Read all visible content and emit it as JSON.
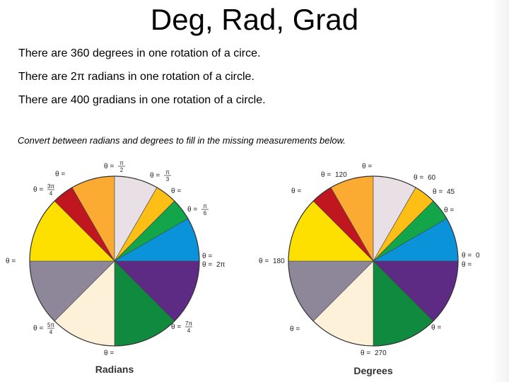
{
  "slide": {
    "title": "Deg, Rad, Grad",
    "lines": [
      "There are 360 degrees in one rotation of a circe.",
      "There are 2π radians in one rotation of a circle.",
      "There are 400 gradians in one rotation of a circle."
    ],
    "instruction": "Convert between radians and degrees to fill in the missing measurements below."
  },
  "colors": {
    "pale_gray": "#e8e0e4",
    "yellow_orange": "#fdbf16",
    "green": "#12a54a",
    "blue": "#0a93d8",
    "purple": "#5d2a84",
    "dark_green": "#0f8a3e",
    "cream": "#fdf1da",
    "gray": "#8e8799",
    "yellow": "#fde000",
    "red": "#c0161f",
    "orange": "#fbab31"
  },
  "wheels": [
    {
      "caption": "Radians",
      "labels": [
        {
          "prefix": "θ =",
          "num": "π",
          "den": "2"
        },
        {
          "prefix": "θ =",
          "num": "π",
          "den": "3"
        },
        {
          "prefix": "θ =",
          "text": ""
        },
        {
          "prefix": "θ =",
          "num": "π",
          "den": "6"
        },
        {
          "prefix": "θ =",
          "text": ""
        },
        {
          "prefix": "θ =",
          "text": "2π"
        },
        {
          "prefix": "θ =",
          "num": "7π",
          "den": "4"
        },
        {
          "prefix": "θ =",
          "text": ""
        },
        {
          "prefix": "θ =",
          "num": "5π",
          "den": "4"
        },
        {
          "prefix": "θ =",
          "text": ""
        },
        {
          "prefix": "θ =",
          "num": "3π",
          "den": "4"
        },
        {
          "prefix": "θ =",
          "text": ""
        }
      ]
    },
    {
      "caption": "Degrees",
      "labels": [
        {
          "prefix": "θ =",
          "text": ""
        },
        {
          "prefix": "θ =",
          "text": "60"
        },
        {
          "prefix": "θ =",
          "text": "45"
        },
        {
          "prefix": "θ =",
          "text": ""
        },
        {
          "prefix": "θ =",
          "text": "0"
        },
        {
          "prefix": "θ =",
          "text": ""
        },
        {
          "prefix": "θ =",
          "text": ""
        },
        {
          "prefix": "θ =",
          "text": "270"
        },
        {
          "prefix": "θ =",
          "text": ""
        },
        {
          "prefix": "θ =",
          "text": "180"
        },
        {
          "prefix": "θ =",
          "text": ""
        },
        {
          "prefix": "θ =",
          "text": "120"
        }
      ]
    }
  ]
}
